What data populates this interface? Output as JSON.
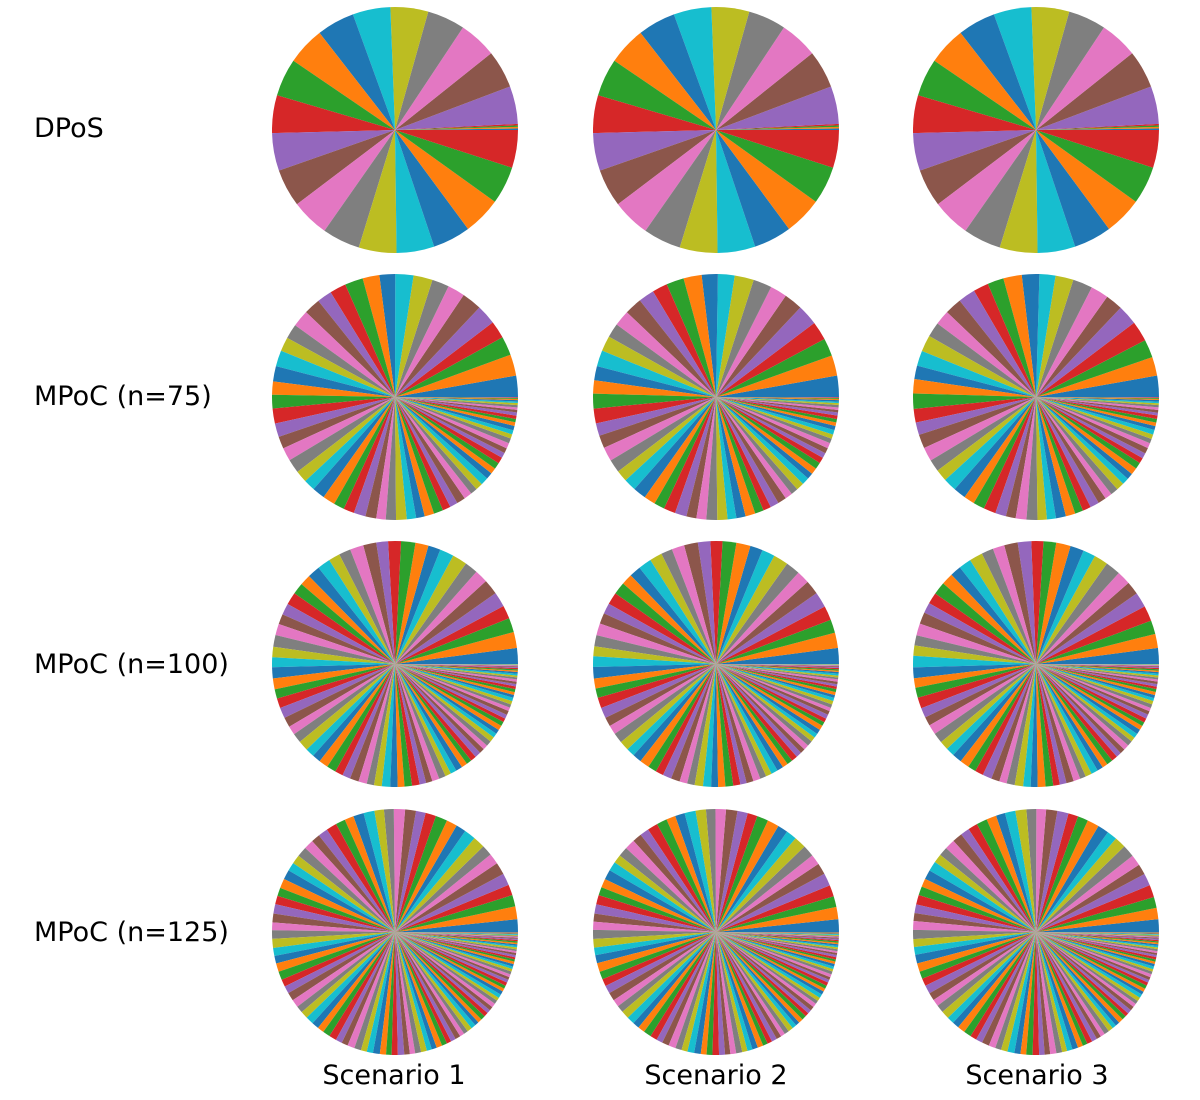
{
  "palette": [
    "#1f77b4",
    "#ff7f0e",
    "#2ca02c",
    "#d62728",
    "#9467bd",
    "#8c564b",
    "#e377c2",
    "#7f7f7f",
    "#bcbd22",
    "#17becf"
  ],
  "chart_data": {
    "type": "pie",
    "row_labels": [
      "DPoS",
      "MPoC (n=75)",
      "MPoC (n=100)",
      "MPoC (n=125)"
    ],
    "column_labels": [
      "Scenario 1",
      "Scenario 2",
      "Scenario 3"
    ],
    "panels": [
      {
        "row": 0,
        "col": 0,
        "row_label": "DPoS",
        "col_label": "Scenario 1",
        "series_profile": "dpos",
        "slices": 24,
        "tiny_slices": 4,
        "large_slice_percent": 4.4
      },
      {
        "row": 0,
        "col": 1,
        "row_label": "DPoS",
        "col_label": "Scenario 2",
        "series_profile": "dpos",
        "slices": 24,
        "tiny_slices": 4,
        "large_slice_percent": 4.4
      },
      {
        "row": 0,
        "col": 2,
        "row_label": "DPoS",
        "col_label": "Scenario 3",
        "series_profile": "dpos",
        "slices": 24,
        "tiny_slices": 4,
        "large_slice_percent": 4.4
      },
      {
        "row": 1,
        "col": 0,
        "row_label": "MPoC (n=75)",
        "col_label": "Scenario 1",
        "series_profile": "mpoc",
        "slices": 75,
        "large_slice_percent": 3.3
      },
      {
        "row": 1,
        "col": 1,
        "row_label": "MPoC (n=75)",
        "col_label": "Scenario 2",
        "series_profile": "mpoc",
        "slices": 75,
        "large_slice_percent": 3.3
      },
      {
        "row": 1,
        "col": 2,
        "row_label": "MPoC (n=75)",
        "col_label": "Scenario 3",
        "series_profile": "mpoc",
        "slices": 75,
        "large_slice_percent": 3.3
      },
      {
        "row": 2,
        "col": 0,
        "row_label": "MPoC (n=100)",
        "col_label": "Scenario 1",
        "series_profile": "mpoc",
        "slices": 100,
        "large_slice_percent": 3.0
      },
      {
        "row": 2,
        "col": 1,
        "row_label": "MPoC (n=100)",
        "col_label": "Scenario 2",
        "series_profile": "mpoc",
        "slices": 100,
        "large_slice_percent": 3.0
      },
      {
        "row": 2,
        "col": 2,
        "row_label": "MPoC (n=100)",
        "col_label": "Scenario 3",
        "series_profile": "mpoc",
        "slices": 100,
        "large_slice_percent": 3.0
      },
      {
        "row": 3,
        "col": 0,
        "row_label": "MPoC (n=125)",
        "col_label": "Scenario 1",
        "series_profile": "mpoc",
        "slices": 125,
        "large_slice_percent": 2.8
      },
      {
        "row": 3,
        "col": 1,
        "row_label": "MPoC (n=125)",
        "col_label": "Scenario 2",
        "series_profile": "mpoc",
        "slices": 125,
        "large_slice_percent": 2.8
      },
      {
        "row": 3,
        "col": 2,
        "row_label": "MPoC (n=125)",
        "col_label": "Scenario 3",
        "series_profile": "mpoc",
        "slices": 125,
        "large_slice_percent": 2.8
      }
    ]
  }
}
